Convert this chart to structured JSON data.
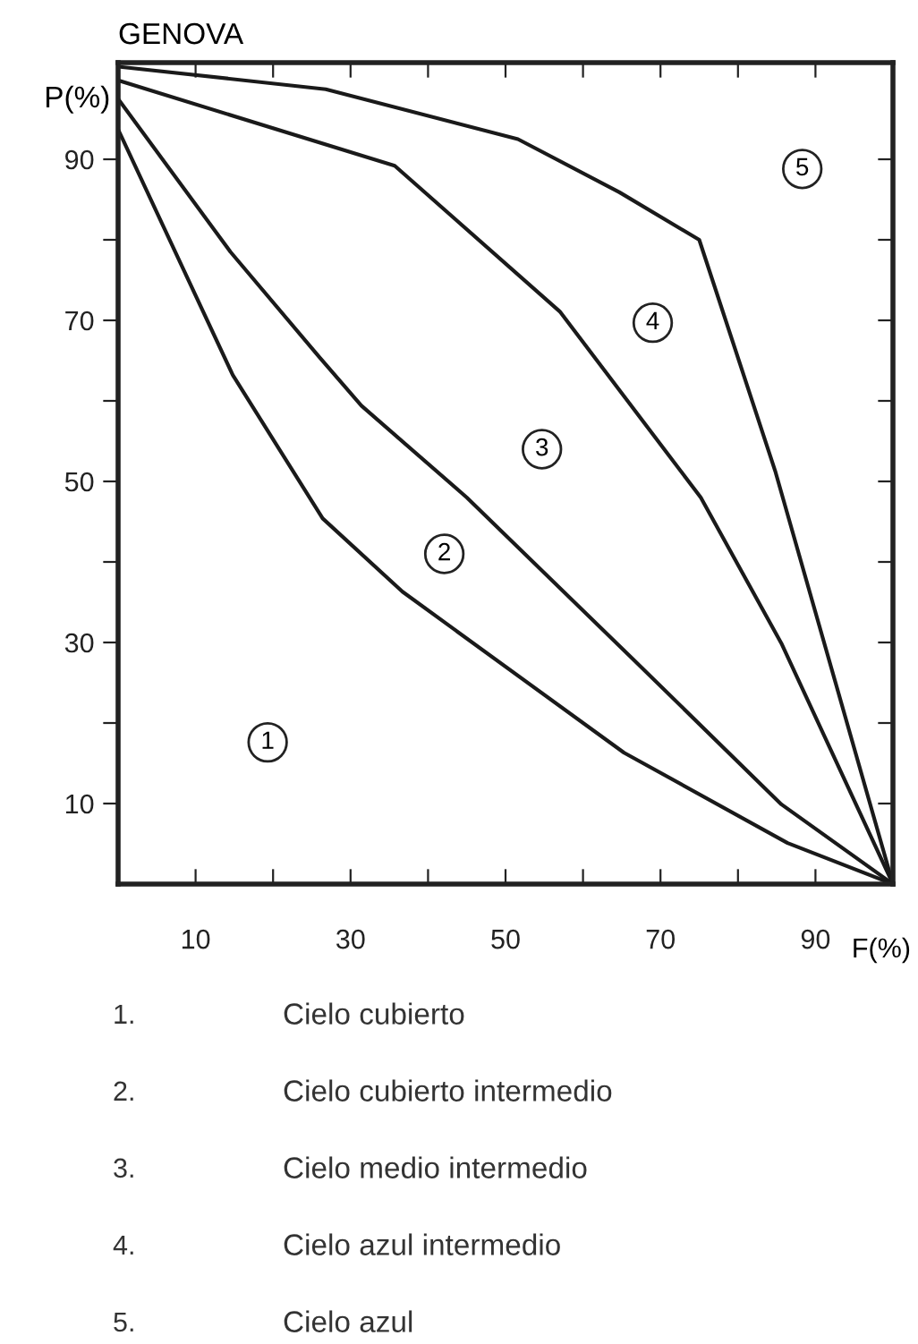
{
  "chart_data": {
    "type": "line",
    "title": "GENOVA",
    "xlabel": "F(%)",
    "ylabel": "P(%)",
    "xlim": [
      0,
      100
    ],
    "ylim": [
      0,
      102
    ],
    "xticks": [
      10,
      {
        "value": 20,
        "label": null
      },
      30,
      {
        "value": 40,
        "label": null
      },
      50,
      {
        "value": 60,
        "label": null
      },
      70,
      {
        "value": 80,
        "label": null
      },
      90
    ],
    "yticks": [
      10,
      {
        "value": 20,
        "label": null
      },
      30,
      {
        "value": 40,
        "label": null
      },
      50,
      {
        "value": 60,
        "label": null
      },
      70,
      {
        "value": 80,
        "label": null
      },
      90
    ],
    "grid": false,
    "marker": "none",
    "line_style": "solid",
    "series": [
      {
        "color": "#1a1a1a",
        "x": [
          0,
          14.8,
          26.4,
          36.7,
          65.3,
          86.4,
          100
        ],
        "values": [
          93.7,
          63.2,
          45.4,
          36.3,
          16.3,
          5.1,
          0
        ]
      },
      {
        "color": "#1a1a1a",
        "x": [
          0,
          14.5,
          26,
          31.4,
          45,
          66.7,
          85.6,
          100
        ],
        "values": [
          97.5,
          78.5,
          65.4,
          59.4,
          48,
          27.7,
          9.9,
          0
        ]
      },
      {
        "color": "#1a1a1a",
        "x": [
          0,
          35.7,
          57,
          75.2,
          85.6,
          100
        ],
        "values": [
          99.8,
          89.2,
          71.1,
          48,
          29.9,
          0
        ]
      },
      {
        "color": "#1a1a1a",
        "x": [
          0,
          26.8,
          51.6,
          64.7,
          75,
          84.8,
          100
        ],
        "values": [
          101.5,
          98.7,
          92.5,
          85.9,
          80,
          51.3,
          0
        ]
      }
    ],
    "annotations": [
      {
        "text": "1",
        "x": 19.3,
        "y": 17.6
      },
      {
        "text": "2",
        "x": 42.1,
        "y": 41
      },
      {
        "text": "3",
        "x": 54.7,
        "y": 54
      },
      {
        "text": "4",
        "x": 69,
        "y": 69.7
      },
      {
        "text": "5",
        "x": 88.3,
        "y": 88.8
      },
      "1.",
      "Cielo cubierto",
      "2.",
      "Cielo cubierto intermedio",
      "3.",
      "Cielo medio intermedio",
      "4.",
      "Cielo azul intermedio",
      "5.",
      "Cielo azul"
    ]
  }
}
